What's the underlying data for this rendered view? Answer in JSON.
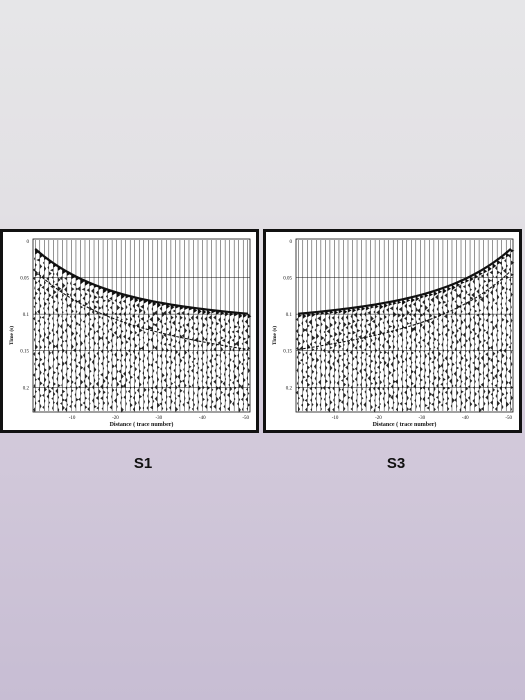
{
  "panels": [
    {
      "id": "s1",
      "caption": "S1",
      "ylabel": "Time (s)",
      "xlabel": "Distance ( trace number)",
      "y_ticks": [
        "0",
        "0.05",
        "0.1",
        "0.15",
        "0.2"
      ],
      "x_ticks": [
        "-10",
        "-20",
        "-30",
        "-40",
        "-50"
      ],
      "first_break": "arrivals start at left, dip toward right edge"
    },
    {
      "id": "s3",
      "caption": "S3",
      "ylabel": "Time (s)",
      "xlabel": "Distance ( trace number)",
      "y_ticks": [
        "0",
        "0.05",
        "0.1",
        "0.15",
        "0.2"
      ],
      "x_ticks": [
        "-10",
        "-20",
        "-30",
        "-40",
        "-50"
      ],
      "first_break": "arrivals start at right, dip toward left edge"
    }
  ],
  "colors": {
    "background_top": "#e6e6e8",
    "background_bottom": "#c7bdd3",
    "panel_border": "#111111",
    "trace_ink": "#111111"
  }
}
